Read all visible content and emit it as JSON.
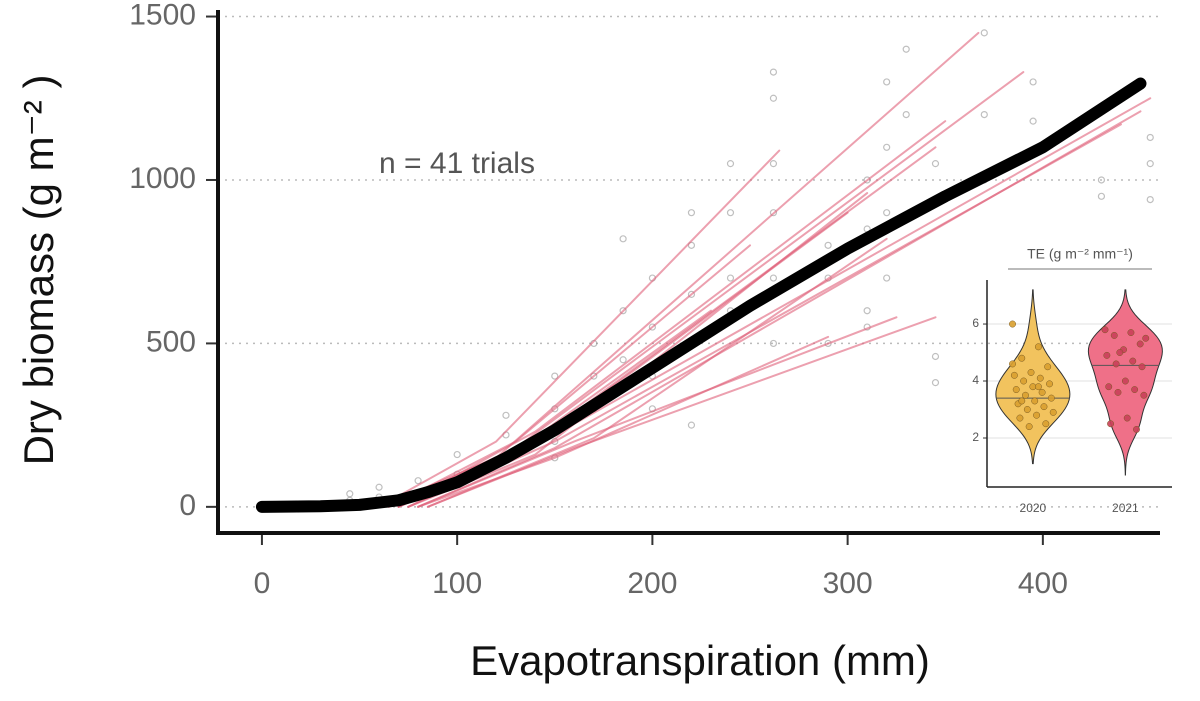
{
  "chart_data": [
    {
      "type": "line",
      "xlabel": "Evapotranspiration (mm)",
      "ylabel": "Dry biomass (g m⁻² )",
      "annotation": "n = 41 trials",
      "xlim": [
        -22.5,
        460
      ],
      "ylim": [
        -80,
        1520
      ],
      "xticks": [
        0,
        100,
        200,
        300,
        400
      ],
      "yticks": [
        0,
        500,
        1000,
        1500
      ],
      "grid": true,
      "series": [
        {
          "color": "#000000",
          "x": [
            0,
            30,
            50,
            70,
            85,
            100,
            125,
            150,
            175,
            200,
            250,
            300,
            350,
            400,
            450
          ],
          "values": [
            0,
            2,
            6,
            20,
            45,
            75,
            150,
            235,
            330,
            425,
            615,
            790,
            950,
            1100,
            1295
          ]
        },
        {
          "color": "#e0607a",
          "x": [
            60,
            120,
            265
          ],
          "values": [
            0,
            200,
            1090
          ]
        },
        {
          "color": "#e0607a",
          "x": [
            60,
            120,
            367
          ],
          "values": [
            0,
            150,
            1450
          ]
        },
        {
          "color": "#e0607a",
          "x": [
            65,
            130,
            390
          ],
          "values": [
            0,
            180,
            1330
          ]
        },
        {
          "color": "#e0607a",
          "x": [
            70,
            140,
            350
          ],
          "values": [
            0,
            230,
            1180
          ]
        },
        {
          "color": "#e0607a",
          "x": [
            70,
            140,
            345
          ],
          "values": [
            0,
            200,
            1100
          ]
        },
        {
          "color": "#e0607a",
          "x": [
            75,
            150,
            455
          ],
          "values": [
            0,
            220,
            1250
          ]
        },
        {
          "color": "#e0607a",
          "x": [
            75,
            150,
            440
          ],
          "values": [
            0,
            200,
            1170
          ]
        },
        {
          "color": "#e0607a",
          "x": [
            80,
            150,
            450
          ],
          "values": [
            0,
            180,
            1210
          ]
        },
        {
          "color": "#e0607a",
          "x": [
            80,
            160,
            325
          ],
          "values": [
            0,
            200,
            580
          ]
        },
        {
          "color": "#e0607a",
          "x": [
            85,
            160,
            345
          ],
          "values": [
            0,
            180,
            580
          ]
        },
        {
          "color": "#e0607a",
          "x": [
            70,
            130,
            300
          ],
          "values": [
            0,
            150,
            900
          ]
        },
        {
          "color": "#e0607a",
          "x": [
            65,
            130,
            250
          ],
          "values": [
            0,
            200,
            800
          ]
        },
        {
          "color": "#e0607a",
          "x": [
            75,
            140,
            310
          ],
          "values": [
            0,
            160,
            960
          ]
        },
        {
          "color": "#e0607a",
          "x": [
            80,
            150,
            290
          ],
          "values": [
            0,
            150,
            520
          ]
        },
        {
          "color": "#e0607a",
          "x": [
            70,
            130,
            230
          ],
          "values": [
            0,
            170,
            600
          ]
        },
        {
          "color": "#e0607a",
          "x": [
            85,
            170,
            320
          ],
          "values": [
            0,
            210,
            820
          ]
        }
      ],
      "points": {
        "color": "#8a8a8a",
        "x": [
          45,
          45,
          60,
          60,
          80,
          80,
          100,
          100,
          125,
          125,
          125,
          150,
          150,
          150,
          150,
          170,
          170,
          170,
          185,
          185,
          185,
          200,
          200,
          200,
          200,
          220,
          220,
          220,
          220,
          220,
          240,
          240,
          240,
          240,
          262,
          262,
          262,
          262,
          262,
          262,
          290,
          290,
          290,
          310,
          310,
          310,
          310,
          320,
          320,
          320,
          320,
          330,
          330,
          345,
          345,
          345,
          370,
          370,
          370,
          395,
          395,
          430,
          430,
          455,
          455,
          455
        ],
        "values": [
          20,
          40,
          30,
          60,
          40,
          80,
          100,
          160,
          150,
          280,
          220,
          200,
          300,
          400,
          150,
          400,
          500,
          300,
          600,
          820,
          450,
          400,
          550,
          700,
          300,
          500,
          800,
          650,
          900,
          250,
          600,
          700,
          900,
          1050,
          1250,
          1330,
          900,
          1050,
          700,
          500,
          800,
          700,
          500,
          1000,
          850,
          600,
          550,
          1100,
          1300,
          700,
          900,
          1400,
          1200,
          380,
          460,
          1050,
          1200,
          1450,
          1000,
          1300,
          1180,
          1000,
          950,
          1130,
          1050,
          940
        ]
      }
    },
    {
      "type": "violin",
      "title": "TE (g m⁻² mm⁻¹)",
      "categories": [
        "2020",
        "2021"
      ],
      "ylim": [
        0.28,
        7.37
      ],
      "yticks": [
        2,
        4,
        6
      ],
      "grid": true,
      "series": [
        {
          "color": "#f2c35e",
          "point_color": "#d9a030",
          "range": [
            1.1,
            7.2
          ],
          "median": 3.4,
          "values": [
            6.0,
            5.2,
            4.8,
            4.5,
            4.3,
            4.2,
            4.1,
            4.0,
            3.9,
            3.8,
            3.7,
            3.6,
            3.5,
            3.4,
            3.3,
            3.2,
            3.1,
            3.0,
            2.9,
            2.8,
            2.7,
            2.5,
            2.4,
            4.6,
            3.8,
            3.3
          ]
        },
        {
          "color": "#ef7088",
          "point_color": "#c9405a",
          "range": [
            0.7,
            7.2
          ],
          "median": 4.55,
          "values": [
            5.8,
            5.7,
            5.6,
            5.3,
            5.1,
            4.9,
            4.7,
            4.6,
            4.5,
            4.0,
            3.8,
            3.7,
            3.6,
            3.5,
            2.7,
            2.5,
            2.3,
            5.0,
            5.5
          ]
        }
      ]
    }
  ]
}
